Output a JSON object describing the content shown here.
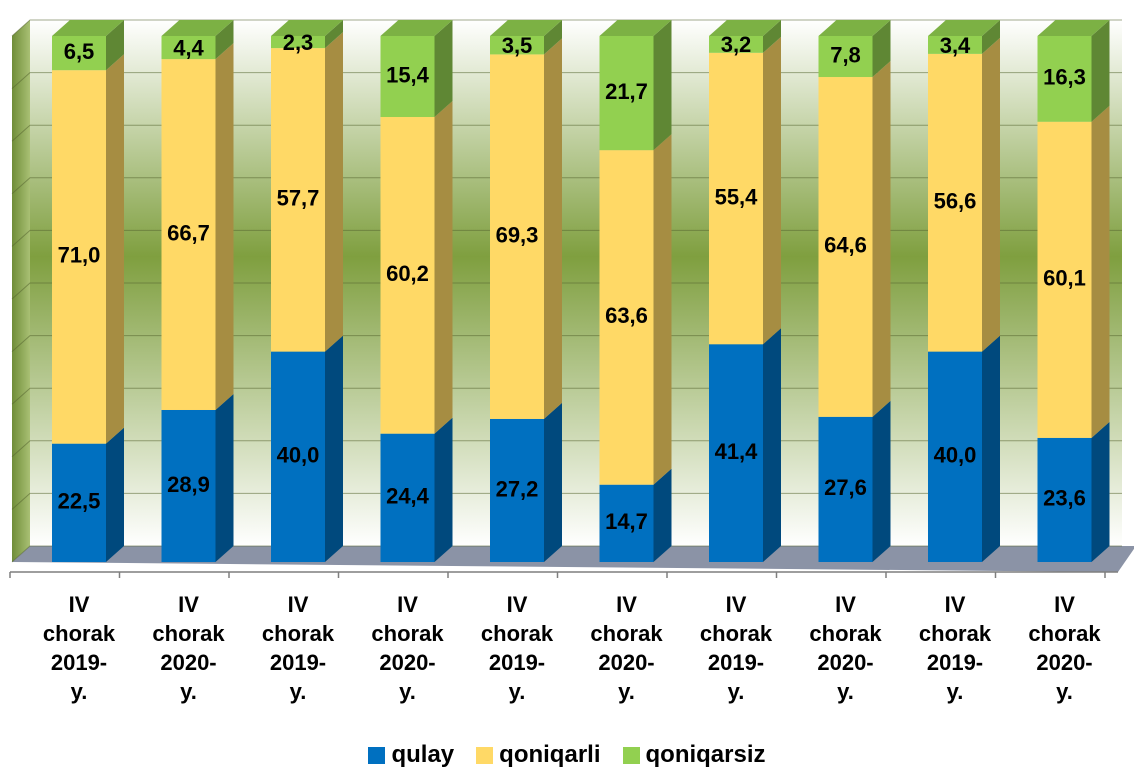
{
  "chart_data": {
    "type": "bar",
    "stacked": true,
    "percent_stacked": true,
    "three_d": true,
    "categories": [
      "IV chorak 2019-y.",
      "IV chorak 2020-y.",
      "IV chorak 2019-y.",
      "IV chorak 2020-y.",
      "IV chorak 2019-y.",
      "IV chorak 2020-y.",
      "IV chorak 2019-y.",
      "IV chorak 2020-y.",
      "IV chorak 2019-y.",
      "IV chorak 2020-y."
    ],
    "category_lines": [
      [
        "IV",
        "chorak",
        "2019-",
        "y."
      ],
      [
        "IV",
        "chorak",
        "2020-",
        "y."
      ],
      [
        "IV",
        "chorak",
        "2019-",
        "y."
      ],
      [
        "IV",
        "chorak",
        "2020-",
        "y."
      ],
      [
        "IV",
        "chorak",
        "2019-",
        "y."
      ],
      [
        "IV",
        "chorak",
        "2020-",
        "y."
      ],
      [
        "IV",
        "chorak",
        "2019-",
        "y."
      ],
      [
        "IV",
        "chorak",
        "2020-",
        "y."
      ],
      [
        "IV",
        "chorak",
        "2019-",
        "y."
      ],
      [
        "IV",
        "chorak",
        "2020-",
        "y."
      ]
    ],
    "series": [
      {
        "name": "qulay",
        "color": "#0070C0",
        "values": [
          22.5,
          28.9,
          40.0,
          24.4,
          27.2,
          14.7,
          41.4,
          27.6,
          40.0,
          23.6
        ],
        "labels": [
          "22,5",
          "28,9",
          "40,0",
          "24,4",
          "27,2",
          "14,7",
          "41,4",
          "27,6",
          "40,0",
          "23,6"
        ]
      },
      {
        "name": "qoniqarli",
        "color": "#FFD966",
        "values": [
          71.0,
          66.7,
          57.7,
          60.2,
          69.3,
          63.6,
          55.4,
          64.6,
          56.6,
          60.1
        ],
        "labels": [
          "71,0",
          "66,7",
          "57,7",
          "60,2",
          "69,3",
          "63,6",
          "55,4",
          "64,6",
          "56,6",
          "60,1"
        ]
      },
      {
        "name": "qoniqarsiz",
        "color": "#92D050",
        "values": [
          6.5,
          4.4,
          2.3,
          15.4,
          3.5,
          21.7,
          3.2,
          7.8,
          3.4,
          16.3
        ],
        "labels": [
          "6,5",
          "4,4",
          "2,3",
          "15,4",
          "3,5",
          "21,7",
          "3,2",
          "7,8",
          "3,4",
          "16,3"
        ]
      }
    ],
    "ylim": [
      0,
      100
    ],
    "title": "",
    "xlabel": "",
    "ylabel": "",
    "grid": true,
    "legend_position": "bottom",
    "colors": {
      "wall_top": "#ffffff",
      "wall_mid": "#7f9f3f",
      "wall_bottom": "#ffffff",
      "floor": "#8b93a6"
    }
  }
}
